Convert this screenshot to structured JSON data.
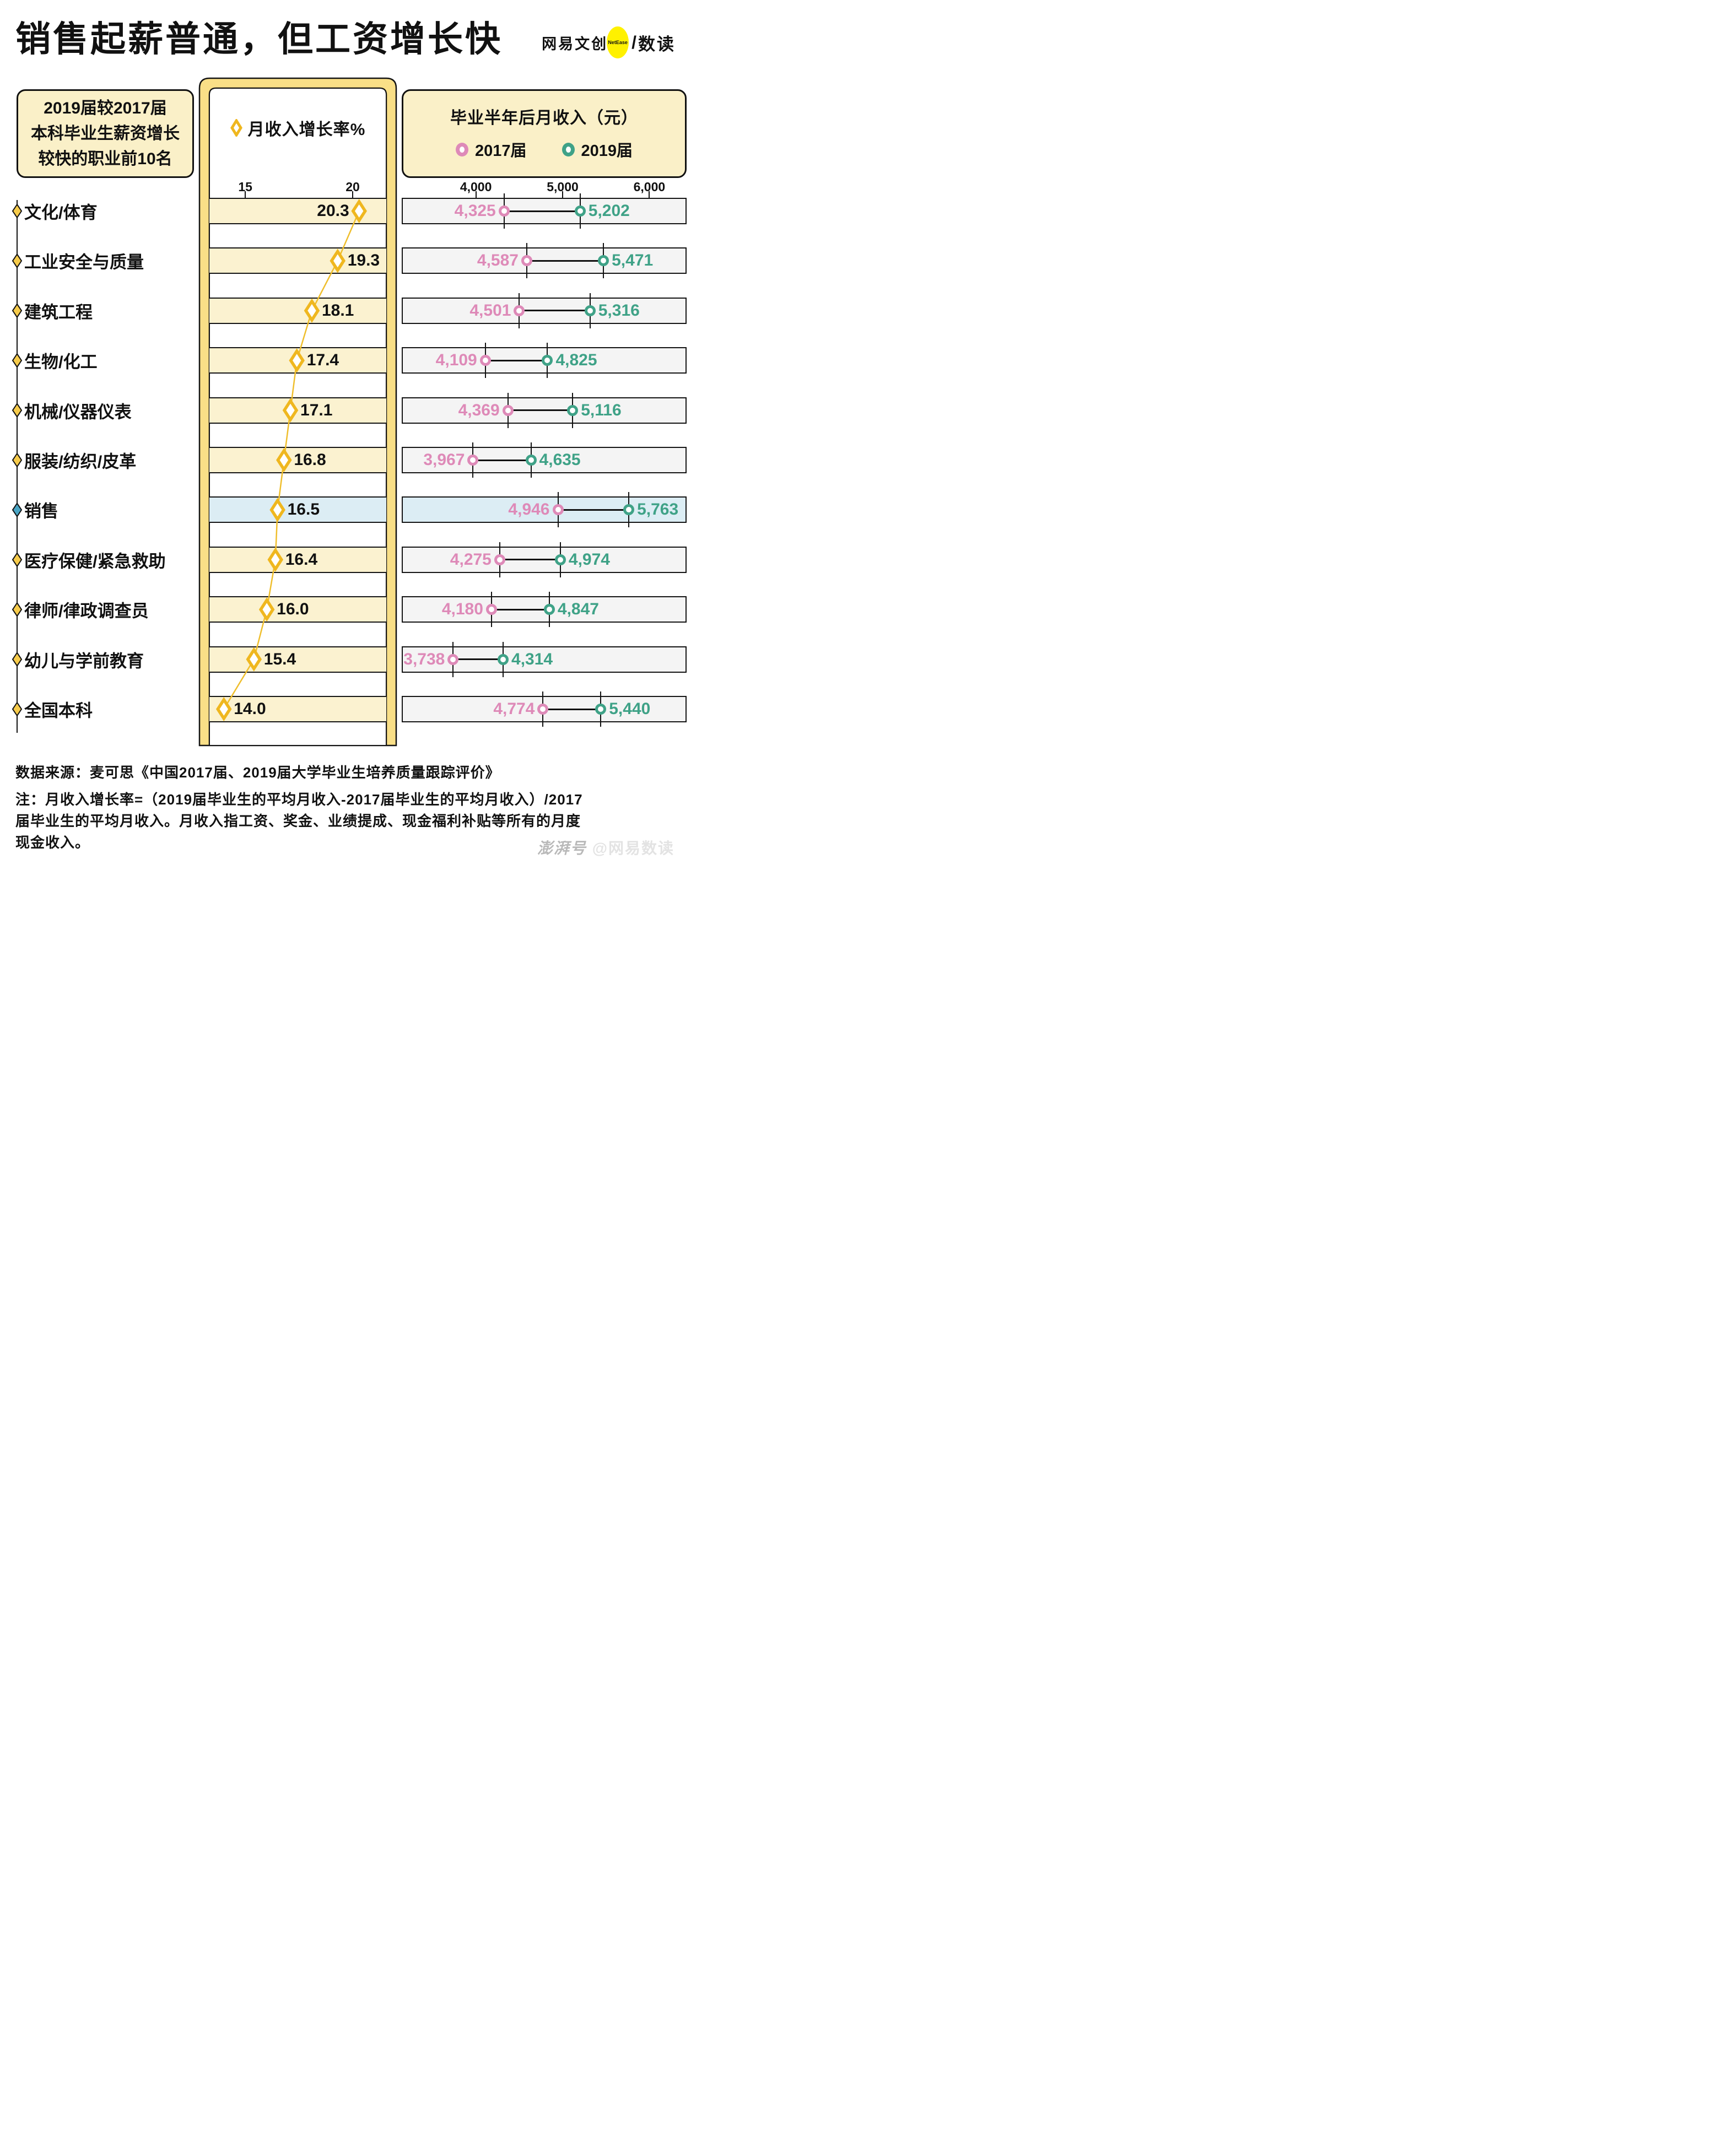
{
  "title": "销售起薪普通，但工资增长快",
  "logo": {
    "brand": "网易文创",
    "badge": "NetEase",
    "slash": "/",
    "suffix": "数读"
  },
  "left_box": {
    "lines": [
      "2019届较2017届",
      "本科毕业生薪资增长",
      "较快的职业前10名"
    ]
  },
  "middle_header": {
    "label": "月收入增长率%"
  },
  "right_header": {
    "title": "毕业半年后月收入（元）",
    "legend": [
      {
        "label": "2017届"
      },
      {
        "label": "2019届"
      }
    ]
  },
  "chart_data": {
    "type": "scatter",
    "title": "2019届较2017届本科毕业生薪资增长较快的职业前10名",
    "categories": [
      "文化/体育",
      "工业安全与质量",
      "建筑工程",
      "生物/化工",
      "机械/仪器仪表",
      "服装/纺织/皮革",
      "销售",
      "医疗保健/紧急救助",
      "律师/律政调查员",
      "幼儿与学前教育",
      "全国本科"
    ],
    "highlight_category": "销售",
    "growth_axis": {
      "label": "月收入增长率%",
      "ticks": [
        15,
        20
      ],
      "tick_labels": [
        "15",
        "20"
      ],
      "range": [
        13.2,
        21.6
      ]
    },
    "income_axis": {
      "label": "毕业半年后月收入（元）",
      "ticks": [
        4000,
        5000,
        6000
      ],
      "tick_labels": [
        "4,000",
        "5,000",
        "6,000"
      ],
      "range": [
        3150,
        6430
      ]
    },
    "series": [
      {
        "name": "月收入增长率%",
        "values": [
          20.3,
          19.3,
          18.1,
          17.4,
          17.1,
          16.8,
          16.5,
          16.4,
          16.0,
          15.4,
          14.0
        ]
      },
      {
        "name": "2017届",
        "values": [
          4325,
          4587,
          4501,
          4109,
          4369,
          3967,
          4946,
          4275,
          4180,
          3738,
          4774
        ]
      },
      {
        "name": "2019届",
        "values": [
          5202,
          5471,
          5316,
          4825,
          5116,
          4635,
          5763,
          4974,
          4847,
          4314,
          5440
        ]
      }
    ],
    "legend_position": "top"
  },
  "footer": {
    "source": "数据来源：麦可思《中国2017届、2019届大学毕业生培养质量跟踪评价》",
    "note_lines": [
      "注：月收入增长率=（2019届毕业生的平均月收入-2017届毕业生的平均月收入）/2017",
      "届毕业生的平均月收入。月收入指工资、奖金、业绩提成、现金福利补贴等所有的月度",
      "现金收入。"
    ]
  },
  "watermark": {
    "part1": "澎湃号",
    "part2": "@网易数读"
  },
  "colors": {
    "accent_yellow": "#EFBE2C",
    "diamond_stroke": "#EFB71F",
    "bullet_yellow": "#F6CB4B",
    "pillar_yellow": "#F9DF87",
    "band_cream": "#FBF2D0",
    "band_gray": "#F4F4F4",
    "highlight_blue": "#DCEDF4",
    "highlight_bullet": "#4AA5C4",
    "pink": "#DE8AB8",
    "teal": "#3FA287",
    "border_dark": "#141414",
    "header_cream": "#FAF0C8",
    "logo_yellow": "#FFF100",
    "watermark_gray": "#C9C9C9"
  }
}
